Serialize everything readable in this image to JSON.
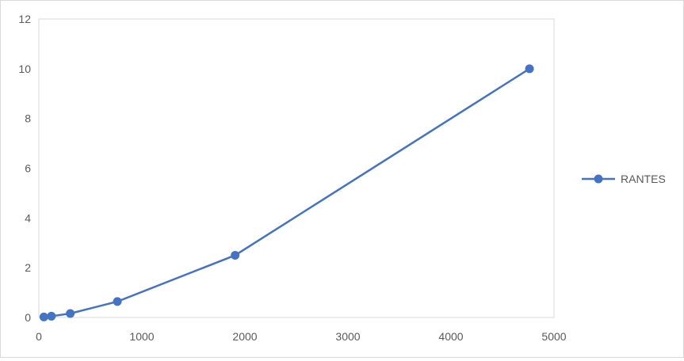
{
  "chart_data": {
    "type": "line",
    "title": "",
    "xlabel": "",
    "ylabel": "",
    "xlim": [
      0,
      5000
    ],
    "ylim": [
      0,
      12
    ],
    "xticks": [
      0,
      1000,
      2000,
      3000,
      4000,
      5000
    ],
    "yticks": [
      0,
      2,
      4,
      6,
      8,
      10,
      12
    ],
    "grid": false,
    "legend": "right",
    "series": [
      {
        "name": "RANTES",
        "color": "#4472c4",
        "x": [
          49,
          122,
          305,
          762,
          1905,
          4762
        ],
        "y": [
          0.02,
          0.05,
          0.16,
          0.64,
          2.5,
          10
        ]
      }
    ]
  }
}
